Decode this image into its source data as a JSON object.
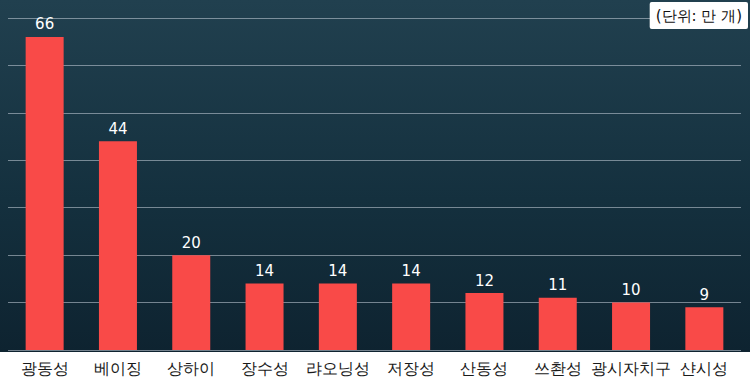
{
  "chart_data": {
    "type": "bar",
    "annotation": "(단위: 만 개)",
    "categories": [
      "광동성",
      "베이징",
      "상하이",
      "장수성",
      "랴오닝성",
      "저장성",
      "산동성",
      "쓰촨성",
      "광시자치구",
      "샨시성"
    ],
    "values": [
      66,
      44,
      20,
      14,
      14,
      14,
      12,
      11,
      10,
      9
    ],
    "color": "#f94a48",
    "ylim": [
      0,
      70
    ],
    "yticks": [
      0,
      10,
      20,
      30,
      40,
      50,
      60,
      70
    ],
    "grid": true,
    "data_labels": true,
    "tick_labels": "x"
  }
}
